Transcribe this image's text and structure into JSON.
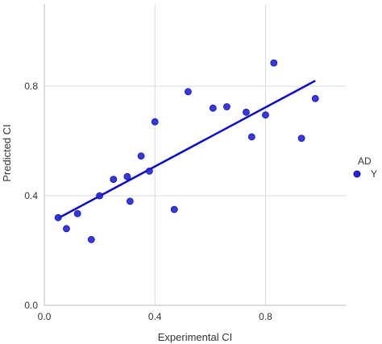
{
  "chart_data": {
    "type": "scatter",
    "xlabel": "Experimental CI",
    "ylabel": "Predicted CI",
    "xlim": [
      0.0,
      1.09
    ],
    "ylim": [
      0.0,
      1.1
    ],
    "xticks": [
      "0.0",
      "0.4",
      "0.8"
    ],
    "yticks": [
      "0.0",
      "0.4",
      "0.8"
    ],
    "grid": true,
    "legend": {
      "title": "AD",
      "entries": [
        "Y"
      ],
      "placement": "right"
    },
    "marker_color": "#2222e0",
    "marker_edge_color": "#1010a0",
    "trendline_color": "#0a0acc",
    "grid_color": "#d9d9d9",
    "series": [
      {
        "name": "Y",
        "points": [
          {
            "x": 0.05,
            "y": 0.32
          },
          {
            "x": 0.08,
            "y": 0.28
          },
          {
            "x": 0.12,
            "y": 0.335
          },
          {
            "x": 0.17,
            "y": 0.24
          },
          {
            "x": 0.2,
            "y": 0.4
          },
          {
            "x": 0.25,
            "y": 0.46
          },
          {
            "x": 0.3,
            "y": 0.47
          },
          {
            "x": 0.31,
            "y": 0.38
          },
          {
            "x": 0.35,
            "y": 0.545
          },
          {
            "x": 0.38,
            "y": 0.49
          },
          {
            "x": 0.4,
            "y": 0.67
          },
          {
            "x": 0.47,
            "y": 0.35
          },
          {
            "x": 0.52,
            "y": 0.78
          },
          {
            "x": 0.61,
            "y": 0.72
          },
          {
            "x": 0.66,
            "y": 0.725
          },
          {
            "x": 0.73,
            "y": 0.705
          },
          {
            "x": 0.75,
            "y": 0.615
          },
          {
            "x": 0.8,
            "y": 0.695
          },
          {
            "x": 0.83,
            "y": 0.885
          },
          {
            "x": 0.93,
            "y": 0.61
          },
          {
            "x": 0.98,
            "y": 0.755
          }
        ]
      }
    ],
    "trendline": {
      "x": [
        0.05,
        0.98
      ],
      "y": [
        0.318,
        0.82
      ]
    }
  }
}
